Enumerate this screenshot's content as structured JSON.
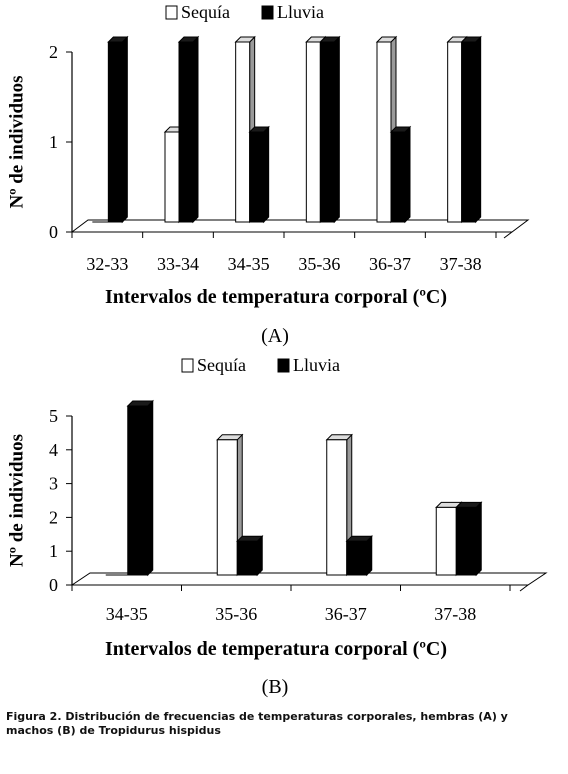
{
  "chart_data": [
    {
      "type": "bar",
      "panel_label": "(A)",
      "categories": [
        "32-33",
        "33-34",
        "34-35",
        "35-36",
        "36-37",
        "37-38"
      ],
      "series": [
        {
          "name": "Sequía",
          "values": [
            0,
            1,
            2,
            2,
            2,
            2
          ]
        },
        {
          "name": "Lluvia",
          "values": [
            2,
            2,
            1,
            2,
            1,
            2
          ]
        }
      ],
      "xlabel": "Intervalos de temperatura corporal (ºC)",
      "ylabel": "Nº de individuos",
      "yticks": [
        "0",
        "1",
        "2"
      ],
      "ylim": [
        0,
        2
      ],
      "legend_position": "top"
    },
    {
      "type": "bar",
      "panel_label": "(B)",
      "categories": [
        "34-35",
        "35-36",
        "36-37",
        "37-38"
      ],
      "series": [
        {
          "name": "Sequía",
          "values": [
            0,
            4,
            4,
            2
          ]
        },
        {
          "name": "Lluvia",
          "values": [
            5,
            1,
            1,
            2
          ]
        }
      ],
      "xlabel": "Intervalos de temperatura corporal (ºC)",
      "ylabel": "Nº de individuos",
      "yticks": [
        "0",
        "1",
        "2",
        "3",
        "4",
        "5"
      ],
      "ylim": [
        0,
        5
      ],
      "legend_position": "top"
    }
  ],
  "caption": "Figura 2. Distribución de frecuencias de temperaturas corporales, hembras (A) y machos (B) de Tropidurus hispidus"
}
